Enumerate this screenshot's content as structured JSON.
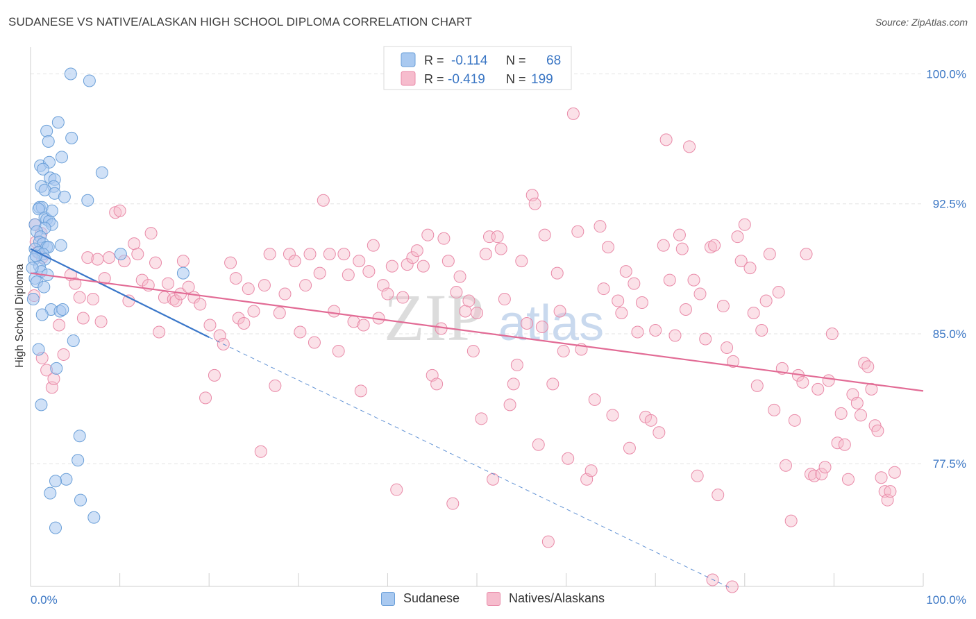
{
  "title": "SUDANESE VS NATIVE/ALASKAN HIGH SCHOOL DIPLOMA CORRELATION CHART",
  "source": "Source: ZipAtlas.com",
  "watermark": {
    "zip": "ZIP",
    "atlas": "atlas"
  },
  "colors": {
    "blue_fill": "#a9c9f0",
    "blue_stroke": "#6a9fd8",
    "blue_line": "#3a77c9",
    "pink_fill": "#f6bccd",
    "pink_stroke": "#e98aa8",
    "pink_line": "#e26b95",
    "tick_label": "#3a76c4",
    "grid": "#e3e3e3"
  },
  "legend": {
    "rows": [
      {
        "r_label": "R =",
        "r_value": "-0.114",
        "n_label": "N =",
        "n_value": "68"
      },
      {
        "r_label": "R =",
        "r_value": "-0.419",
        "n_label": "N =",
        "n_value": "199"
      }
    ],
    "series": [
      "Sudanese",
      "Natives/Alaskans"
    ]
  },
  "chart_data": {
    "type": "scatter",
    "title": "SUDANESE VS NATIVE/ALASKAN HIGH SCHOOL DIPLOMA CORRELATION CHART",
    "xlabel": "",
    "ylabel": "High School Diploma",
    "xlim": [
      0,
      100
    ],
    "ylim": [
      70.3,
      100.9
    ],
    "x_tick_labels": [
      "0.0%",
      "100.0%"
    ],
    "y_ticks": [
      77.5,
      85.0,
      92.5,
      100.0
    ],
    "y_tick_labels": [
      "77.5%",
      "85.0%",
      "92.5%",
      "100.0%"
    ],
    "grid": true,
    "legend_position": "top-center",
    "series": [
      {
        "name": "Sudanese",
        "color": "#a9c9f0",
        "trend": {
          "x": [
            0,
            20
          ],
          "y": [
            89.9,
            84.8
          ],
          "dashed_extension_to": [
            78.5,
            70.3
          ]
        },
        "points": [
          [
            4.5,
            100.0
          ],
          [
            6.6,
            99.6
          ],
          [
            3.1,
            97.2
          ],
          [
            1.8,
            96.7
          ],
          [
            2.0,
            96.1
          ],
          [
            4.6,
            96.3
          ],
          [
            3.5,
            95.2
          ],
          [
            1.1,
            94.7
          ],
          [
            2.1,
            94.9
          ],
          [
            8.0,
            94.3
          ],
          [
            1.4,
            94.5
          ],
          [
            2.2,
            94.0
          ],
          [
            2.7,
            93.9
          ],
          [
            1.2,
            93.5
          ],
          [
            2.6,
            93.5
          ],
          [
            1.6,
            93.3
          ],
          [
            2.7,
            93.1
          ],
          [
            3.8,
            92.9
          ],
          [
            6.4,
            92.7
          ],
          [
            1.0,
            92.3
          ],
          [
            1.3,
            92.3
          ],
          [
            0.9,
            92.2
          ],
          [
            1.6,
            91.7
          ],
          [
            1.8,
            91.6
          ],
          [
            2.1,
            91.5
          ],
          [
            0.5,
            91.3
          ],
          [
            2.4,
            91.3
          ],
          [
            1.6,
            91.1
          ],
          [
            0.7,
            90.9
          ],
          [
            1.1,
            90.6
          ],
          [
            1.0,
            90.3
          ],
          [
            1.4,
            90.2
          ],
          [
            3.4,
            90.1
          ],
          [
            1.8,
            90.0
          ],
          [
            2.0,
            90.0
          ],
          [
            0.5,
            89.9
          ],
          [
            0.9,
            89.7
          ],
          [
            10.1,
            89.6
          ],
          [
            1.4,
            89.6
          ],
          [
            1.6,
            89.3
          ],
          [
            0.4,
            89.3
          ],
          [
            1.0,
            88.9
          ],
          [
            1.2,
            88.6
          ],
          [
            17.1,
            88.5
          ],
          [
            1.9,
            88.4
          ],
          [
            0.5,
            88.2
          ],
          [
            0.7,
            88.0
          ],
          [
            0.3,
            87.0
          ],
          [
            2.3,
            86.4
          ],
          [
            3.3,
            86.3
          ],
          [
            3.6,
            86.4
          ],
          [
            1.3,
            86.1
          ],
          [
            4.8,
            84.6
          ],
          [
            0.9,
            84.1
          ],
          [
            2.9,
            83.0
          ],
          [
            1.2,
            80.9
          ],
          [
            5.5,
            79.1
          ],
          [
            5.3,
            77.7
          ],
          [
            4.0,
            76.6
          ],
          [
            2.8,
            76.5
          ],
          [
            2.2,
            75.8
          ],
          [
            5.6,
            75.4
          ],
          [
            7.1,
            74.4
          ],
          [
            2.8,
            73.8
          ],
          [
            0.2,
            88.8
          ],
          [
            0.6,
            89.5
          ],
          [
            1.5,
            87.7
          ],
          [
            2.4,
            92.1
          ]
        ]
      },
      {
        "name": "Natives/Alaskans",
        "color": "#f6bccd",
        "trend": {
          "x": [
            0,
            100
          ],
          "y": [
            88.5,
            81.7
          ]
        },
        "points": [
          [
            0.5,
            91.3
          ],
          [
            0.6,
            90.3
          ],
          [
            1.3,
            89.4
          ],
          [
            0.8,
            89.7
          ],
          [
            1.2,
            90.8
          ],
          [
            0.4,
            87.2
          ],
          [
            1.3,
            83.6
          ],
          [
            1.8,
            82.9
          ],
          [
            2.4,
            81.9
          ],
          [
            2.6,
            82.4
          ],
          [
            3.2,
            85.5
          ],
          [
            3.7,
            83.8
          ],
          [
            4.5,
            88.4
          ],
          [
            5.0,
            87.9
          ],
          [
            5.5,
            87.1
          ],
          [
            5.9,
            85.9
          ],
          [
            6.4,
            89.4
          ],
          [
            7.0,
            87.0
          ],
          [
            7.5,
            89.3
          ],
          [
            7.9,
            85.7
          ],
          [
            8.3,
            88.2
          ],
          [
            8.8,
            89.4
          ],
          [
            9.5,
            92.0
          ],
          [
            10.0,
            92.1
          ],
          [
            10.5,
            89.2
          ],
          [
            11.0,
            86.9
          ],
          [
            11.6,
            90.2
          ],
          [
            12.0,
            89.6
          ],
          [
            12.5,
            88.1
          ],
          [
            13.2,
            87.8
          ],
          [
            13.5,
            90.8
          ],
          [
            14.0,
            89.1
          ],
          [
            14.4,
            85.1
          ],
          [
            15.0,
            87.1
          ],
          [
            15.4,
            87.9
          ],
          [
            16.0,
            87.0
          ],
          [
            16.3,
            86.9
          ],
          [
            16.8,
            87.3
          ],
          [
            17.1,
            89.2
          ],
          [
            17.7,
            87.7
          ],
          [
            18.3,
            87.1
          ],
          [
            19.0,
            86.7
          ],
          [
            19.6,
            81.3
          ],
          [
            20.1,
            85.5
          ],
          [
            20.6,
            82.6
          ],
          [
            21.2,
            84.9
          ],
          [
            21.6,
            84.4
          ],
          [
            22.4,
            89.1
          ],
          [
            23.0,
            88.2
          ],
          [
            23.3,
            85.9
          ],
          [
            23.9,
            85.6
          ],
          [
            24.4,
            87.6
          ],
          [
            25.0,
            86.3
          ],
          [
            25.8,
            78.2
          ],
          [
            26.2,
            87.8
          ],
          [
            26.8,
            89.6
          ],
          [
            27.4,
            82.0
          ],
          [
            27.9,
            86.2
          ],
          [
            28.5,
            87.3
          ],
          [
            29.0,
            89.6
          ],
          [
            29.6,
            89.2
          ],
          [
            30.2,
            85.1
          ],
          [
            30.8,
            87.8
          ],
          [
            31.3,
            89.6
          ],
          [
            31.8,
            84.5
          ],
          [
            32.4,
            88.5
          ],
          [
            32.8,
            92.7
          ],
          [
            33.5,
            89.6
          ],
          [
            34.0,
            86.3
          ],
          [
            34.5,
            84.0
          ],
          [
            35.1,
            89.6
          ],
          [
            35.6,
            88.4
          ],
          [
            36.2,
            85.7
          ],
          [
            36.8,
            89.2
          ],
          [
            37.3,
            85.5
          ],
          [
            37.9,
            88.6
          ],
          [
            38.4,
            90.1
          ],
          [
            39.0,
            85.9
          ],
          [
            39.5,
            87.8
          ],
          [
            40.0,
            87.3
          ],
          [
            40.5,
            88.9
          ],
          [
            41.0,
            76.0
          ],
          [
            41.7,
            87.1
          ],
          [
            42.2,
            89.0
          ],
          [
            42.8,
            89.4
          ],
          [
            43.3,
            89.8
          ],
          [
            44.0,
            88.9
          ],
          [
            44.5,
            90.7
          ],
          [
            45.0,
            82.6
          ],
          [
            45.5,
            82.1
          ],
          [
            46.0,
            85.3
          ],
          [
            46.3,
            90.5
          ],
          [
            46.8,
            89.2
          ],
          [
            47.3,
            75.2
          ],
          [
            47.7,
            87.4
          ],
          [
            48.1,
            88.3
          ],
          [
            48.7,
            86.3
          ],
          [
            49.1,
            86.9
          ],
          [
            49.6,
            84.0
          ],
          [
            50.0,
            86.2
          ],
          [
            50.5,
            80.1
          ],
          [
            51.0,
            89.6
          ],
          [
            51.4,
            90.6
          ],
          [
            51.8,
            76.6
          ],
          [
            52.3,
            90.6
          ],
          [
            52.7,
            89.9
          ],
          [
            53.1,
            87.0
          ],
          [
            53.7,
            80.9
          ],
          [
            54.1,
            82.1
          ],
          [
            54.5,
            83.2
          ],
          [
            55.0,
            89.2
          ],
          [
            55.6,
            85.6
          ],
          [
            56.2,
            93.0
          ],
          [
            56.5,
            92.5
          ],
          [
            56.9,
            78.6
          ],
          [
            57.3,
            85.4
          ],
          [
            57.6,
            90.7
          ],
          [
            58.0,
            73.0
          ],
          [
            58.5,
            82.1
          ],
          [
            59.0,
            88.5
          ],
          [
            59.3,
            86.3
          ],
          [
            59.7,
            84.0
          ],
          [
            60.2,
            77.8
          ],
          [
            60.8,
            97.7
          ],
          [
            61.3,
            90.9
          ],
          [
            61.7,
            84.1
          ],
          [
            62.3,
            76.6
          ],
          [
            62.8,
            77.1
          ],
          [
            63.2,
            81.2
          ],
          [
            63.8,
            91.2
          ],
          [
            64.2,
            87.6
          ],
          [
            64.7,
            90.0
          ],
          [
            65.2,
            80.3
          ],
          [
            65.8,
            86.9
          ],
          [
            66.2,
            86.2
          ],
          [
            66.7,
            88.6
          ],
          [
            67.1,
            78.4
          ],
          [
            67.6,
            87.9
          ],
          [
            68.0,
            85.1
          ],
          [
            68.5,
            86.8
          ],
          [
            68.9,
            80.2
          ],
          [
            69.5,
            80.0
          ],
          [
            70.0,
            85.2
          ],
          [
            70.4,
            79.3
          ],
          [
            70.9,
            90.1
          ],
          [
            71.2,
            96.2
          ],
          [
            71.6,
            88.1
          ],
          [
            72.2,
            84.9
          ],
          [
            72.7,
            90.7
          ],
          [
            73.0,
            89.9
          ],
          [
            73.4,
            86.4
          ],
          [
            73.8,
            95.8
          ],
          [
            74.3,
            88.1
          ],
          [
            74.7,
            76.8
          ],
          [
            75.0,
            87.3
          ],
          [
            75.6,
            84.7
          ],
          [
            76.2,
            90.0
          ],
          [
            76.6,
            90.1
          ],
          [
            77.0,
            75.7
          ],
          [
            77.6,
            86.6
          ],
          [
            78.0,
            84.2
          ],
          [
            78.7,
            83.4
          ],
          [
            79.2,
            90.6
          ],
          [
            79.6,
            89.2
          ],
          [
            80.0,
            91.3
          ],
          [
            80.6,
            88.8
          ],
          [
            81.0,
            86.2
          ],
          [
            81.4,
            82.0
          ],
          [
            81.9,
            85.2
          ],
          [
            82.4,
            86.9
          ],
          [
            82.8,
            89.6
          ],
          [
            83.3,
            80.6
          ],
          [
            83.8,
            87.4
          ],
          [
            84.2,
            83.0
          ],
          [
            84.6,
            77.4
          ],
          [
            85.2,
            74.2
          ],
          [
            85.6,
            80.0
          ],
          [
            86.0,
            82.6
          ],
          [
            86.5,
            82.2
          ],
          [
            86.9,
            89.6
          ],
          [
            87.4,
            76.9
          ],
          [
            87.8,
            76.8
          ],
          [
            88.2,
            81.8
          ],
          [
            88.6,
            76.9
          ],
          [
            89.0,
            77.3
          ],
          [
            89.4,
            82.3
          ],
          [
            89.8,
            85.0
          ],
          [
            90.4,
            78.7
          ],
          [
            90.8,
            80.4
          ],
          [
            91.2,
            78.6
          ],
          [
            91.6,
            76.6
          ],
          [
            92.1,
            81.5
          ],
          [
            92.6,
            81.0
          ],
          [
            93.0,
            80.3
          ],
          [
            93.4,
            83.3
          ],
          [
            93.8,
            83.1
          ],
          [
            94.2,
            81.8
          ],
          [
            94.6,
            79.7
          ],
          [
            94.9,
            79.4
          ],
          [
            95.3,
            76.7
          ],
          [
            95.7,
            75.9
          ],
          [
            96.0,
            75.4
          ],
          [
            96.3,
            75.9
          ],
          [
            96.8,
            77.0
          ],
          [
            37.0,
            81.7
          ],
          [
            78.6,
            70.4
          ],
          [
            76.4,
            70.8
          ]
        ]
      }
    ]
  }
}
